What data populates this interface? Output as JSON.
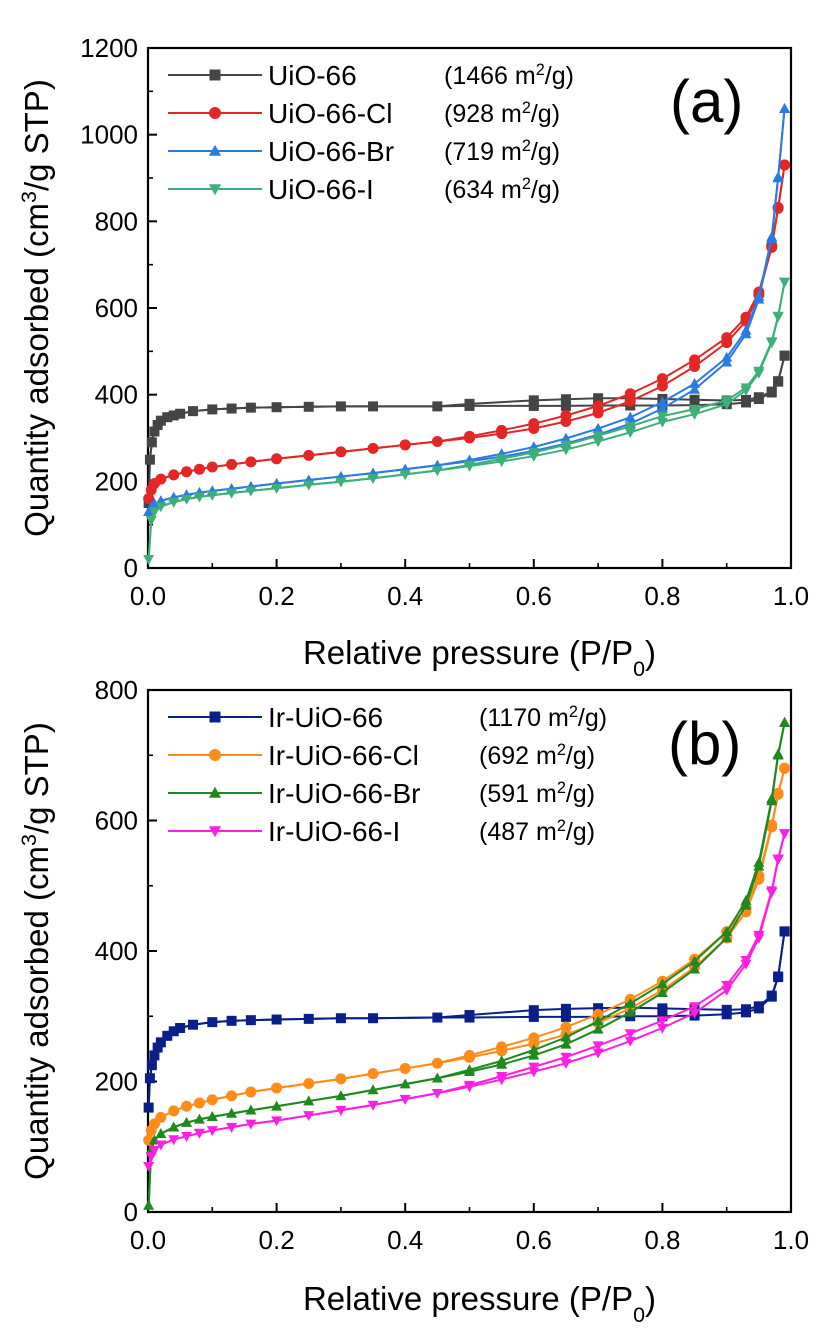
{
  "chart_data": [
    {
      "type": "line",
      "panel_label": "(a)",
      "xlabel": "Relative pressure (P/P",
      "xlabel_sub": "0",
      "xlabel_end": ")",
      "ylabel_pre": "Quantity adsorbed (cm",
      "ylabel_sup": "3",
      "ylabel_post": "/g STP)",
      "xlim": [
        0,
        1.0
      ],
      "ylim": [
        0,
        1200
      ],
      "xticks": [
        "0.0",
        "0.2",
        "0.4",
        "0.6",
        "0.8",
        "1.0"
      ],
      "yticks": [
        "0",
        "200",
        "400",
        "600",
        "800",
        "1000",
        "1200"
      ],
      "legend_placement": "top-left",
      "series": [
        {
          "name": "UiO-66",
          "area": "(1466 m",
          "area_unit": "2",
          "area_end": "/g)",
          "color": "#454545",
          "marker": "square",
          "x": [
            0.001,
            0.003,
            0.006,
            0.01,
            0.015,
            0.02,
            0.03,
            0.04,
            0.05,
            0.07,
            0.1,
            0.13,
            0.16,
            0.2,
            0.25,
            0.3,
            0.35,
            0.45,
            0.5,
            0.6,
            0.65,
            0.7,
            0.75,
            0.8,
            0.85,
            0.9,
            0.93,
            0.95,
            0.97,
            0.98,
            0.99
          ],
          "y": [
            150,
            250,
            290,
            315,
            330,
            340,
            348,
            352,
            356,
            362,
            366,
            368,
            370,
            371,
            372,
            373,
            373,
            373,
            374,
            374,
            374,
            375,
            375,
            375,
            376,
            378,
            382,
            390,
            405,
            430,
            490
          ]
        },
        {
          "name": "UiO-66-Cl",
          "area": "(928 m",
          "area_unit": "2",
          "area_end": "/g)",
          "color": "#e32626",
          "marker": "circle",
          "x": [
            0.001,
            0.005,
            0.01,
            0.02,
            0.04,
            0.06,
            0.08,
            0.1,
            0.13,
            0.16,
            0.2,
            0.25,
            0.3,
            0.35,
            0.4,
            0.45,
            0.5,
            0.55,
            0.6,
            0.65,
            0.7,
            0.75,
            0.8,
            0.85,
            0.9,
            0.93,
            0.95,
            0.97,
            0.98,
            0.99
          ],
          "y": [
            160,
            180,
            195,
            205,
            215,
            222,
            228,
            233,
            239,
            245,
            252,
            260,
            268,
            276,
            284,
            292,
            300,
            310,
            322,
            338,
            358,
            385,
            420,
            465,
            520,
            570,
            630,
            740,
            830,
            930
          ]
        },
        {
          "name": "UiO-66-Br",
          "area": "(719 m",
          "area_unit": "2",
          "area_end": "/g)",
          "color": "#2a7be6",
          "marker": "triangle-up",
          "x": [
            0.001,
            0.005,
            0.01,
            0.02,
            0.04,
            0.06,
            0.08,
            0.1,
            0.13,
            0.16,
            0.2,
            0.25,
            0.3,
            0.35,
            0.4,
            0.45,
            0.5,
            0.55,
            0.6,
            0.65,
            0.7,
            0.75,
            0.8,
            0.85,
            0.9,
            0.93,
            0.95,
            0.97,
            0.98,
            0.99
          ],
          "y": [
            130,
            140,
            148,
            155,
            163,
            169,
            174,
            178,
            183,
            188,
            195,
            203,
            211,
            219,
            228,
            237,
            246,
            257,
            270,
            287,
            308,
            333,
            368,
            412,
            475,
            540,
            620,
            760,
            900,
            1060
          ]
        },
        {
          "name": "UiO-66-I",
          "area": "(634 m",
          "area_unit": "2",
          "area_end": "/g)",
          "color": "#3db07a",
          "marker": "triangle-down",
          "x": [
            0.001,
            0.005,
            0.01,
            0.02,
            0.04,
            0.06,
            0.08,
            0.1,
            0.13,
            0.16,
            0.2,
            0.25,
            0.3,
            0.35,
            0.4,
            0.45,
            0.5,
            0.55,
            0.6,
            0.65,
            0.7,
            0.75,
            0.8,
            0.85,
            0.9,
            0.93,
            0.95,
            0.97,
            0.98,
            0.99
          ],
          "y": [
            20,
            110,
            130,
            142,
            152,
            159,
            164,
            168,
            173,
            178,
            184,
            192,
            199,
            207,
            216,
            225,
            235,
            246,
            258,
            273,
            292,
            313,
            337,
            355,
            378,
            410,
            450,
            520,
            580,
            660
          ]
        }
      ]
    },
    {
      "type": "line",
      "panel_label": "(b)",
      "xlabel": "Relative pressure (P/P",
      "xlabel_sub": "0",
      "xlabel_end": ")",
      "ylabel_pre": "Quantity adsorbed (cm",
      "ylabel_sup": "3",
      "ylabel_post": "/g STP)",
      "xlim": [
        0,
        1.0
      ],
      "ylim": [
        0,
        800
      ],
      "xticks": [
        "0.0",
        "0.2",
        "0.4",
        "0.6",
        "0.8",
        "1.0"
      ],
      "yticks": [
        "0",
        "200",
        "400",
        "600",
        "800"
      ],
      "legend_placement": "top-left",
      "series": [
        {
          "name": "Ir-UiO-66",
          "area": "(1170 m",
          "area_unit": "2",
          "area_end": "/g)",
          "color": "#0b1f8a",
          "marker": "square",
          "x": [
            0.001,
            0.003,
            0.006,
            0.01,
            0.015,
            0.02,
            0.03,
            0.04,
            0.05,
            0.07,
            0.1,
            0.13,
            0.16,
            0.2,
            0.25,
            0.3,
            0.35,
            0.45,
            0.5,
            0.6,
            0.65,
            0.7,
            0.75,
            0.8,
            0.85,
            0.9,
            0.93,
            0.95,
            0.97,
            0.98,
            0.99
          ],
          "y": [
            160,
            205,
            225,
            240,
            252,
            260,
            270,
            277,
            282,
            287,
            291,
            293,
            294,
            295,
            296,
            297,
            297,
            298,
            298,
            299,
            299,
            299,
            300,
            300,
            301,
            303,
            306,
            312,
            330,
            360,
            430
          ]
        },
        {
          "name": "Ir-UiO-66-Cl",
          "area": "(692 m",
          "area_unit": "2",
          "area_end": "/g)",
          "color": "#ff8c1a",
          "marker": "circle",
          "x": [
            0.001,
            0.005,
            0.01,
            0.02,
            0.04,
            0.06,
            0.08,
            0.1,
            0.13,
            0.16,
            0.2,
            0.25,
            0.3,
            0.35,
            0.4,
            0.45,
            0.5,
            0.55,
            0.6,
            0.65,
            0.7,
            0.75,
            0.8,
            0.85,
            0.9,
            0.93,
            0.95,
            0.97,
            0.98,
            0.99
          ],
          "y": [
            110,
            125,
            135,
            145,
            155,
            162,
            167,
            172,
            178,
            184,
            190,
            197,
            204,
            212,
            220,
            228,
            237,
            247,
            258,
            272,
            290,
            312,
            340,
            375,
            420,
            460,
            510,
            590,
            640,
            680
          ]
        },
        {
          "name": "Ir-UiO-66-Br",
          "area": "(591 m",
          "area_unit": "2",
          "area_end": "/g)",
          "color": "#1e8a1e",
          "marker": "triangle-up",
          "x": [
            0.001,
            0.005,
            0.01,
            0.02,
            0.04,
            0.06,
            0.08,
            0.1,
            0.13,
            0.16,
            0.2,
            0.25,
            0.3,
            0.35,
            0.4,
            0.45,
            0.5,
            0.55,
            0.6,
            0.65,
            0.7,
            0.75,
            0.8,
            0.85,
            0.9,
            0.93,
            0.95,
            0.97,
            0.98,
            0.99
          ],
          "y": [
            10,
            95,
            110,
            120,
            130,
            137,
            142,
            146,
            151,
            156,
            162,
            170,
            178,
            187,
            196,
            205,
            215,
            226,
            240,
            257,
            280,
            306,
            336,
            372,
            420,
            470,
            530,
            630,
            700,
            750
          ]
        },
        {
          "name": "Ir-UiO-66-I",
          "area": "(487 m",
          "area_unit": "2",
          "area_end": "/g)",
          "color": "#ff1fdf",
          "marker": "triangle-down",
          "x": [
            0.001,
            0.005,
            0.01,
            0.02,
            0.04,
            0.06,
            0.08,
            0.1,
            0.13,
            0.16,
            0.2,
            0.25,
            0.3,
            0.35,
            0.4,
            0.45,
            0.5,
            0.55,
            0.6,
            0.65,
            0.7,
            0.75,
            0.8,
            0.85,
            0.9,
            0.93,
            0.95,
            0.97,
            0.98,
            0.99
          ],
          "y": [
            70,
            85,
            95,
            103,
            111,
            116,
            121,
            125,
            130,
            135,
            140,
            148,
            156,
            164,
            173,
            182,
            192,
            203,
            215,
            228,
            244,
            262,
            282,
            305,
            340,
            380,
            420,
            490,
            540,
            580
          ]
        }
      ]
    }
  ]
}
